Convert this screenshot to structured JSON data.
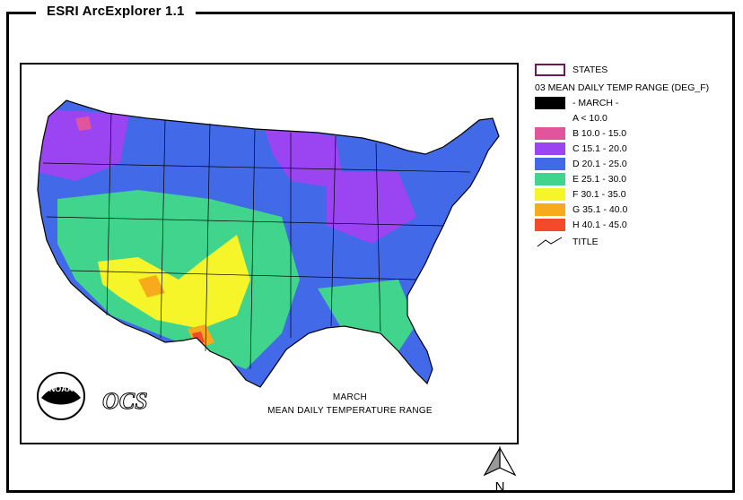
{
  "app": {
    "title": "ESRI ArcExplorer 1.1"
  },
  "map": {
    "caption_line1": "MARCH",
    "caption_line2": "MEAN DAILY TEMPERATURE RANGE",
    "logo_noaa": "NOAA",
    "logo_ocs": "OCS",
    "north_label": "N"
  },
  "legend": {
    "states_label": "STATES",
    "layer_title": "03 MEAN DAILY TEMP RANGE (DEG_F)",
    "classes": [
      {
        "label": "- MARCH -",
        "color": "#000000"
      },
      {
        "label": "A  < 10.0",
        "color": "#ffffff"
      },
      {
        "label": "B 10.0 - 15.0",
        "color": "#e0559c"
      },
      {
        "label": "C 15.1 - 20.0",
        "color": "#9b44f2"
      },
      {
        "label": "D 20.1 - 25.0",
        "color": "#4169e8"
      },
      {
        "label": "E 25.1 - 30.0",
        "color": "#41d48c"
      },
      {
        "label": "F 30.1 - 35.0",
        "color": "#f5f52a"
      },
      {
        "label": "G 35.1 - 40.0",
        "color": "#f7ab1c"
      },
      {
        "label": "H 40.1 - 45.0",
        "color": "#f24a2a"
      }
    ],
    "title_label": "TITLE",
    "states_outline_color": "#6a1a5a"
  }
}
